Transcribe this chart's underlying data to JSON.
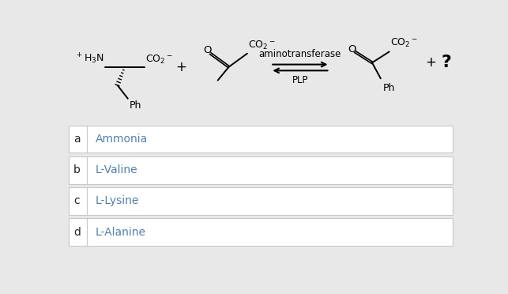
{
  "bg_color": "#e8e8e8",
  "white": "#ffffff",
  "border_color": "#c8c8c8",
  "text_color_dark": "#222222",
  "text_color_blue": "#5080b0",
  "answer_labels": [
    "a",
    "b",
    "c",
    "d"
  ],
  "answer_texts": [
    "Ammonia",
    "L-Valine",
    "L-Lysine",
    "L-Alanine"
  ],
  "enzyme_label": "aminotransferase",
  "cofactor_label": "PLP",
  "question_mark": "?"
}
